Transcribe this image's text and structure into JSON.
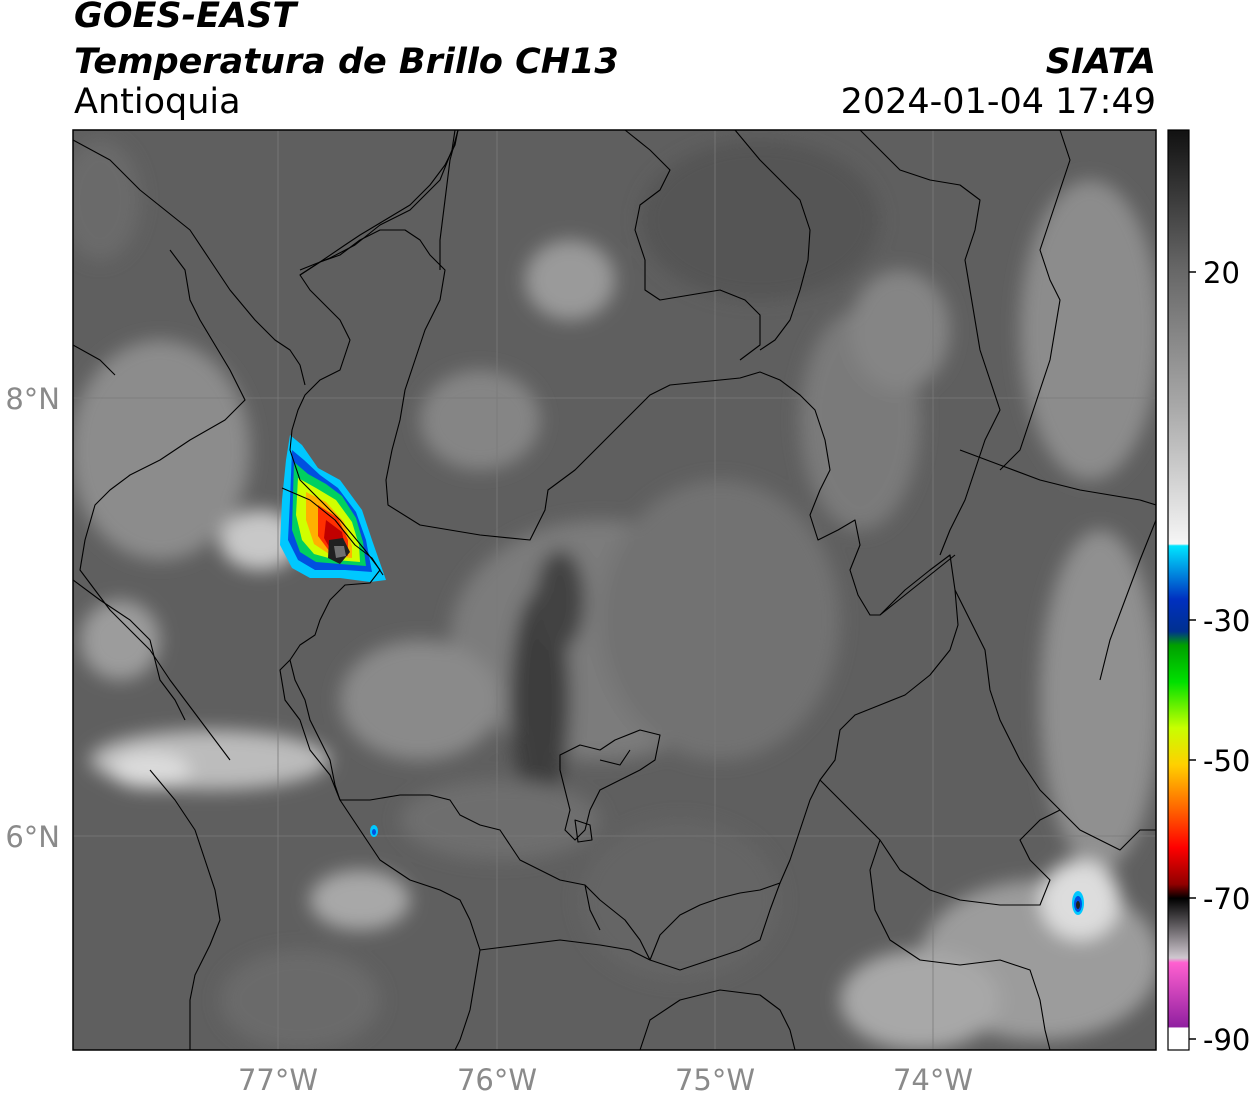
{
  "header": {
    "satellite": "GOES-EAST",
    "product": "Temperatura de Brillo CH13",
    "region": "Antioquia",
    "agency": "SIATA",
    "datetime": "2024-01-04 17:49"
  },
  "map": {
    "lon_labels": [
      "77°W",
      "76°W",
      "75°W",
      "74°W"
    ],
    "lat_labels": [
      "8°N",
      "6°N"
    ],
    "background_gray": "#5f5f5f",
    "gridline_color": "#7a7a7a",
    "border_color": "#000000"
  },
  "colorbar": {
    "ticks": [
      "20",
      "-30",
      "-50",
      "-70",
      "-90"
    ],
    "stops": [
      {
        "t": 0.0,
        "c": "#111111"
      },
      {
        "t": 0.15,
        "c": "#666666"
      },
      {
        "t": 0.3,
        "c": "#a8a8a8"
      },
      {
        "t": 0.45,
        "c": "#f6f6f6"
      },
      {
        "t": 0.452,
        "c": "#00e5ff"
      },
      {
        "t": 0.51,
        "c": "#0030c0"
      },
      {
        "t": 0.545,
        "c": "#003090"
      },
      {
        "t": 0.56,
        "c": "#00a000"
      },
      {
        "t": 0.6,
        "c": "#00e000"
      },
      {
        "t": 0.65,
        "c": "#c8ff00"
      },
      {
        "t": 0.69,
        "c": "#ffd000"
      },
      {
        "t": 0.74,
        "c": "#ff6000"
      },
      {
        "t": 0.78,
        "c": "#ff0000"
      },
      {
        "t": 0.82,
        "c": "#900000"
      },
      {
        "t": 0.835,
        "c": "#000000"
      },
      {
        "t": 0.9,
        "c": "#d0c8d0"
      },
      {
        "t": 0.905,
        "c": "#ff60d0"
      },
      {
        "t": 0.975,
        "c": "#9020a0"
      },
      {
        "t": 0.976,
        "c": "#ffffff"
      },
      {
        "t": 1.0,
        "c": "#ffffff"
      }
    ]
  },
  "storm_palette": [
    "#00c8ff",
    "#0050e0",
    "#00d060",
    "#d0ff00",
    "#ffb000",
    "#ff3000",
    "#c00000",
    "#202020",
    "#707070"
  ]
}
